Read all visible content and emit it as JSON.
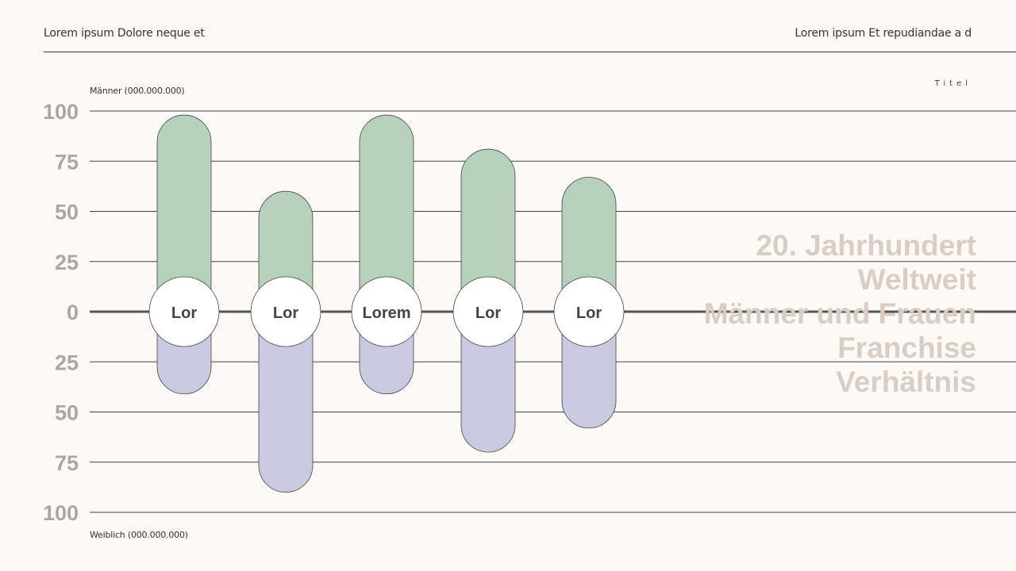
{
  "header": {
    "left": "Lorem ipsum Dolore neque et",
    "right": "Lorem ipsum Et repudiandae a d"
  },
  "tag": "Titel",
  "side_title": [
    "20. Jahrhundert",
    "Weltweit",
    "Männer und Frauen",
    "Franchise",
    "Verhältnis"
  ],
  "colors": {
    "male": "#b5d1bc",
    "female": "#c9c9e2",
    "axis_text": "#a8a8a8",
    "grid": "#444444",
    "title": "#d9cdc4"
  },
  "chart_data": {
    "type": "bar",
    "layout": "diverging",
    "categories": [
      "Lor",
      "Lor",
      "Lorem",
      "Lor",
      "Lor"
    ],
    "series": [
      {
        "name": "Männer (000.000.000)",
        "values": [
          98,
          60,
          98,
          81,
          67
        ]
      },
      {
        "name": "Weiblich (000.000.000)",
        "values": [
          41,
          90,
          41,
          70,
          58
        ]
      }
    ],
    "yticks_up": [
      "100",
      "75",
      "50",
      "25"
    ],
    "ytick_zero": "0",
    "yticks_down": [
      "25",
      "50",
      "75",
      "100"
    ],
    "ylim": [
      -100,
      100
    ],
    "ylabel_top": "Männer (000.000.000)",
    "ylabel_bottom": "Weiblich (000.000.000)",
    "grid": true
  }
}
